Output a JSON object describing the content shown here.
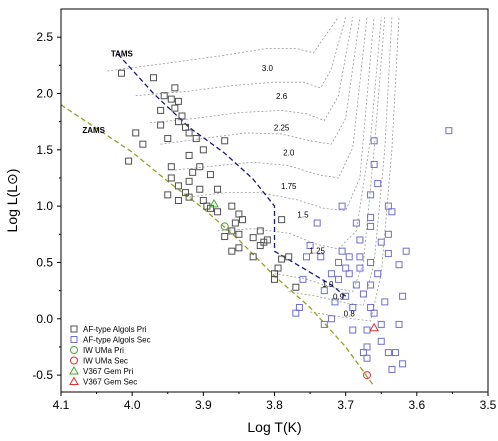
{
  "chart_data": {
    "type": "scatter",
    "xlabel": "Log T(K)",
    "ylabel": "Log L(L⊙)",
    "xlim": [
      4.1,
      3.5
    ],
    "ylim": [
      -0.65,
      2.75
    ],
    "x_reversed": true,
    "xticks": [
      "4.1",
      "4.0",
      "3.9",
      "3.8",
      "3.7",
      "3.6",
      "3.5"
    ],
    "yticks": [
      "-0.5",
      "0.0",
      "0.5",
      "1.0",
      "1.5",
      "2.0",
      "2.5"
    ],
    "legend_position": "bottom-left",
    "colors": {
      "pri": "#505050",
      "sec": "#7070cc",
      "iw": "#e03030",
      "v367_pri": "#44aa33",
      "v367_sec": "#e03030",
      "zams": "#9aa020",
      "tams": "#1a1a80",
      "track": "#9a9a9a"
    },
    "annotations": {
      "zams": {
        "text": "ZAMS",
        "x": 4.07,
        "y": 1.65
      },
      "tams": {
        "text": "TAMS",
        "x": 4.03,
        "y": 2.33
      }
    },
    "lines": {
      "zams": [
        [
          4.1,
          1.9
        ],
        [
          4.0,
          1.48
        ],
        [
          3.95,
          1.22
        ],
        [
          3.9,
          0.98
        ],
        [
          3.85,
          0.7
        ],
        [
          3.8,
          0.38
        ],
        [
          3.75,
          0.1
        ],
        [
          3.7,
          -0.25
        ],
        [
          3.66,
          -0.6
        ]
      ],
      "tams": [
        [
          4.02,
          2.35
        ],
        [
          3.97,
          2.0
        ],
        [
          3.92,
          1.7
        ],
        [
          3.87,
          1.47
        ],
        [
          3.83,
          1.24
        ],
        [
          3.8,
          1.0
        ],
        [
          3.8,
          0.6
        ],
        [
          3.76,
          0.45
        ],
        [
          3.72,
          0.3
        ],
        [
          3.7,
          0.2
        ]
      ]
    },
    "tracks": [
      {
        "label": "3.0",
        "label_x": 3.81,
        "label_y": 2.2,
        "points": [
          [
            4.035,
            2.2
          ],
          [
            3.95,
            2.27
          ],
          [
            3.88,
            2.33
          ],
          [
            3.81,
            2.4
          ],
          [
            3.77,
            2.4
          ],
          [
            3.745,
            2.36
          ],
          [
            3.73,
            2.5
          ],
          [
            3.71,
            2.68
          ]
        ]
      },
      {
        "label": "2.6",
        "label_x": 3.79,
        "label_y": 1.95,
        "points": [
          [
            3.995,
            1.98
          ],
          [
            3.92,
            2.02
          ],
          [
            3.86,
            2.07
          ],
          [
            3.8,
            2.1
          ],
          [
            3.76,
            2.1
          ],
          [
            3.735,
            2.05
          ],
          [
            3.72,
            2.22
          ],
          [
            3.7,
            2.68
          ]
        ]
      },
      {
        "label": "2.25",
        "label_x": 3.79,
        "label_y": 1.67,
        "points": [
          [
            3.975,
            1.74
          ],
          [
            3.91,
            1.78
          ],
          [
            3.85,
            1.83
          ],
          [
            3.79,
            1.85
          ],
          [
            3.755,
            1.82
          ],
          [
            3.73,
            1.76
          ],
          [
            3.71,
            1.98
          ],
          [
            3.69,
            2.68
          ]
        ]
      },
      {
        "label": "2.0",
        "label_x": 3.78,
        "label_y": 1.45,
        "points": [
          [
            3.96,
            1.55
          ],
          [
            3.9,
            1.6
          ],
          [
            3.84,
            1.65
          ],
          [
            3.79,
            1.64
          ],
          [
            3.75,
            1.58
          ],
          [
            3.72,
            1.55
          ],
          [
            3.7,
            1.78
          ],
          [
            3.68,
            2.68
          ]
        ]
      },
      {
        "label": "1.75",
        "label_x": 3.78,
        "label_y": 1.15,
        "points": [
          [
            3.94,
            1.32
          ],
          [
            3.88,
            1.36
          ],
          [
            3.83,
            1.39
          ],
          [
            3.78,
            1.36
          ],
          [
            3.74,
            1.28
          ],
          [
            3.71,
            1.25
          ],
          [
            3.69,
            1.52
          ],
          [
            3.67,
            2.68
          ]
        ]
      },
      {
        "label": "1.5",
        "label_x": 3.76,
        "label_y": 0.9,
        "points": [
          [
            3.92,
            1.08
          ],
          [
            3.87,
            1.12
          ],
          [
            3.82,
            1.12
          ],
          [
            3.77,
            1.06
          ],
          [
            3.73,
            0.98
          ],
          [
            3.7,
            0.96
          ],
          [
            3.68,
            1.25
          ],
          [
            3.66,
            2.68
          ]
        ]
      },
      {
        "label": "1.25",
        "label_x": 3.74,
        "label_y": 0.58,
        "points": [
          [
            3.88,
            0.78
          ],
          [
            3.83,
            0.8
          ],
          [
            3.78,
            0.76
          ],
          [
            3.74,
            0.66
          ],
          [
            3.71,
            0.62
          ],
          [
            3.685,
            0.78
          ],
          [
            3.665,
            1.6
          ],
          [
            3.65,
            2.68
          ]
        ]
      },
      {
        "label": "1.0",
        "label_x": 3.725,
        "label_y": 0.28,
        "points": [
          [
            3.8,
            0.4
          ],
          [
            3.76,
            0.36
          ],
          [
            3.72,
            0.28
          ],
          [
            3.69,
            0.24
          ],
          [
            3.675,
            0.5
          ],
          [
            3.66,
            1.5
          ],
          [
            3.645,
            2.68
          ]
        ]
      },
      {
        "label": "0.9",
        "label_x": 3.71,
        "label_y": 0.17,
        "points": [
          [
            3.78,
            0.24
          ],
          [
            3.74,
            0.2
          ],
          [
            3.7,
            0.14
          ],
          [
            3.675,
            0.12
          ],
          [
            3.66,
            0.5
          ],
          [
            3.645,
            1.5
          ],
          [
            3.635,
            2.68
          ]
        ]
      },
      {
        "label": "0.8",
        "label_x": 3.695,
        "label_y": 0.02,
        "points": [
          [
            3.75,
            0.06
          ],
          [
            3.72,
            0.03
          ],
          [
            3.69,
            0.0
          ],
          [
            3.665,
            -0.02
          ],
          [
            3.65,
            0.4
          ],
          [
            3.635,
            1.5
          ],
          [
            3.625,
            2.68
          ]
        ]
      }
    ],
    "series": [
      {
        "name": "AF-type Algols Pri",
        "marker": "square",
        "color": "#505050",
        "points": [
          [
            4.015,
            2.18
          ],
          [
            3.97,
            2.14
          ],
          [
            3.955,
            1.98
          ],
          [
            3.945,
            1.95
          ],
          [
            3.94,
            2.05
          ],
          [
            3.935,
            1.93
          ],
          [
            3.94,
            1.87
          ],
          [
            3.96,
            1.85
          ],
          [
            3.93,
            1.8
          ],
          [
            3.925,
            1.7
          ],
          [
            3.935,
            1.75
          ],
          [
            3.92,
            1.65
          ],
          [
            3.96,
            1.72
          ],
          [
            3.95,
            1.6
          ],
          [
            3.91,
            1.6
          ],
          [
            3.87,
            1.58
          ],
          [
            3.995,
            1.65
          ],
          [
            3.985,
            1.55
          ],
          [
            3.9,
            1.5
          ],
          [
            3.92,
            1.45
          ],
          [
            4.005,
            1.4
          ],
          [
            3.905,
            1.35
          ],
          [
            3.945,
            1.35
          ],
          [
            3.915,
            1.3
          ],
          [
            3.89,
            1.28
          ],
          [
            3.92,
            1.22
          ],
          [
            3.935,
            1.18
          ],
          [
            3.925,
            1.12
          ],
          [
            3.905,
            1.15
          ],
          [
            3.92,
            1.08
          ],
          [
            3.88,
            1.15
          ],
          [
            3.935,
            1.05
          ],
          [
            3.9,
            1.05
          ],
          [
            3.895,
            1.0
          ],
          [
            3.86,
            1.0
          ],
          [
            3.88,
            0.95
          ],
          [
            3.85,
            0.93
          ],
          [
            3.845,
            0.88
          ],
          [
            3.855,
            0.85
          ],
          [
            3.86,
            0.78
          ],
          [
            3.85,
            0.75
          ],
          [
            3.83,
            0.72
          ],
          [
            3.82,
            0.78
          ],
          [
            3.82,
            0.65
          ],
          [
            3.815,
            0.68
          ],
          [
            3.81,
            0.7
          ],
          [
            3.87,
            0.73
          ],
          [
            3.83,
            0.55
          ],
          [
            3.79,
            0.88
          ],
          [
            3.79,
            0.53
          ],
          [
            3.795,
            0.45
          ],
          [
            3.8,
            0.4
          ],
          [
            3.8,
            0.35
          ],
          [
            3.77,
            0.28
          ],
          [
            3.78,
            0.55
          ],
          [
            3.85,
            0.63
          ],
          [
            3.86,
            0.6
          ],
          [
            3.89,
            0.98
          ],
          [
            3.95,
            1.1
          ],
          [
            3.945,
            1.25
          ]
        ]
      },
      {
        "name": "AF-type Algols Sec",
        "marker": "square",
        "color": "#7070cc",
        "points": [
          [
            3.555,
            1.67
          ],
          [
            3.615,
            0.6
          ],
          [
            3.62,
            0.2
          ],
          [
            3.625,
            -0.05
          ],
          [
            3.625,
            0.48
          ],
          [
            3.635,
            0.95
          ],
          [
            3.64,
            1.0
          ],
          [
            3.64,
            0.75
          ],
          [
            3.64,
            0.58
          ],
          [
            3.65,
            0.68
          ],
          [
            3.645,
            0.15
          ],
          [
            3.65,
            -0.05
          ],
          [
            3.655,
            0.4
          ],
          [
            3.655,
            1.2
          ],
          [
            3.66,
            1.58
          ],
          [
            3.66,
            1.37
          ],
          [
            3.665,
            1.1
          ],
          [
            3.665,
            0.9
          ],
          [
            3.665,
            0.82
          ],
          [
            3.665,
            0.5
          ],
          [
            3.665,
            0.3
          ],
          [
            3.665,
            0.1
          ],
          [
            3.67,
            -0.1
          ],
          [
            3.67,
            -0.25
          ],
          [
            3.67,
            -0.35
          ],
          [
            3.675,
            -0.3
          ],
          [
            3.675,
            0.22
          ],
          [
            3.68,
            0.45
          ],
          [
            3.68,
            0.7
          ],
          [
            3.68,
            0.55
          ],
          [
            3.685,
            0.85
          ],
          [
            3.685,
            0.3
          ],
          [
            3.69,
            0.1
          ],
          [
            3.69,
            -0.1
          ],
          [
            3.695,
            0.4
          ],
          [
            3.695,
            0.55
          ],
          [
            3.7,
            0.2
          ],
          [
            3.7,
            0.45
          ],
          [
            3.705,
            0.6
          ],
          [
            3.705,
            1.0
          ],
          [
            3.71,
            0.5
          ],
          [
            3.71,
            0.35
          ],
          [
            3.715,
            0.15
          ],
          [
            3.72,
            0.0
          ],
          [
            3.72,
            0.4
          ],
          [
            3.73,
            0.25
          ],
          [
            3.735,
            0.55
          ],
          [
            3.74,
            0.85
          ],
          [
            3.75,
            0.65
          ],
          [
            3.755,
            0.55
          ],
          [
            3.76,
            0.35
          ],
          [
            3.765,
            0.1
          ],
          [
            3.77,
            0.05
          ],
          [
            3.73,
            -0.05
          ],
          [
            3.64,
            -0.3
          ],
          [
            3.62,
            -0.4
          ],
          [
            3.635,
            -0.45
          ],
          [
            3.65,
            -0.2
          ],
          [
            3.63,
            -0.3
          ],
          [
            3.66,
            0.05
          ]
        ]
      },
      {
        "name": "IW UMa Pri",
        "marker": "circle",
        "color": "#44aa33",
        "points": [
          [
            3.87,
            0.82
          ]
        ]
      },
      {
        "name": "IW UMa Sec",
        "marker": "circle",
        "color": "#e03030",
        "points": [
          [
            3.67,
            -0.5
          ]
        ]
      },
      {
        "name": "V367 Gem Pri",
        "marker": "triangle",
        "color": "#44aa33",
        "points": [
          [
            3.885,
            1.02
          ]
        ]
      },
      {
        "name": "V367 Gem Sec",
        "marker": "triangle",
        "color": "#e03030",
        "points": [
          [
            3.66,
            -0.08
          ]
        ]
      }
    ]
  }
}
